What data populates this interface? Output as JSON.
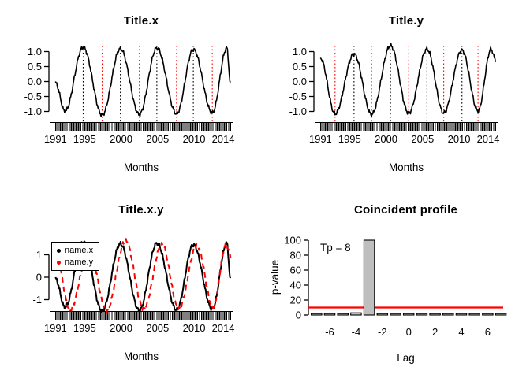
{
  "figure": {
    "background": "#ffffff"
  },
  "colors": {
    "black": "#000000",
    "red": "#ff0000",
    "bar_gray": "#bebebe"
  },
  "series_keypoints": {
    "x": [
      [
        1991,
        -0.05
      ],
      [
        1992.3,
        -1
      ],
      [
        1994.8,
        1.15
      ],
      [
        1997.4,
        -1.12
      ],
      [
        1999.9,
        1.1
      ],
      [
        2002.5,
        -1.1
      ],
      [
        2004.9,
        1.12
      ],
      [
        2007.6,
        -1.08
      ],
      [
        2009.9,
        1.07
      ],
      [
        2012.5,
        -1.05
      ],
      [
        2014.5,
        1.12
      ],
      [
        2015,
        -0.1
      ]
    ],
    "y": [
      [
        1991,
        0.78
      ],
      [
        1993,
        -1.08
      ],
      [
        1995.6,
        0.92
      ],
      [
        1998,
        -1.1
      ],
      [
        2000.6,
        1.2
      ],
      [
        2003.1,
        -1.05
      ],
      [
        2005.6,
        1.08
      ],
      [
        2007.9,
        -1.05
      ],
      [
        2010.4,
        1.05
      ],
      [
        2012.6,
        -0.98
      ],
      [
        2014.4,
        1.08
      ],
      [
        2015,
        0.72
      ]
    ]
  },
  "chart_data": [
    {
      "id": "title_x",
      "type": "line",
      "title": "Title.x",
      "xlabel": "Months",
      "x_range": [
        1991,
        2015
      ],
      "x_tick_years": [
        1991,
        1995,
        2000,
        2005,
        2010,
        2014
      ],
      "x_tick_labels": [
        "1991",
        "1995",
        "2000",
        "2005",
        "2010",
        "2014"
      ],
      "y_tick_values": [
        1,
        0.5,
        0,
        -0.5,
        -1
      ],
      "y_tick_labels": [
        "1.0",
        "0.5",
        "0.0",
        "-0.5",
        "-1.0"
      ],
      "ylim": [
        -1.3,
        1.3
      ],
      "rug": "monthly tick marks 1991-2015",
      "series": [
        {
          "ref": "x",
          "name": "name.x",
          "color": "#000000",
          "line": "solid",
          "scale": 1,
          "width": 1.6
        }
      ],
      "peak_lines": {
        "color": "#000000",
        "style": "dotted",
        "years": [
          1994.8,
          1999.9,
          2004.9,
          2009.9
        ]
      },
      "trough_lines": {
        "color": "#ff0000",
        "style": "dotted",
        "years": [
          1997.4,
          2002.5,
          2007.6,
          2012.5
        ]
      }
    },
    {
      "id": "title_y",
      "type": "line",
      "title": "Title.y",
      "xlabel": "Months",
      "x_range": [
        1991,
        2015
      ],
      "x_tick_years": [
        1991,
        1995,
        2000,
        2005,
        2010,
        2014
      ],
      "x_tick_labels": [
        "1991",
        "1995",
        "2000",
        "2005",
        "2010",
        "2014"
      ],
      "y_tick_values": [
        1,
        0.5,
        0,
        -0.5,
        -1
      ],
      "y_tick_labels": [
        "1.0",
        "0.5",
        "0.0",
        "-0.5",
        "-1.0"
      ],
      "ylim": [
        -1.3,
        1.3
      ],
      "rug": "monthly tick marks 1991-2015",
      "series": [
        {
          "ref": "y",
          "name": "name.y",
          "color": "#000000",
          "line": "solid",
          "scale": 1,
          "width": 1.6
        }
      ],
      "peak_lines": {
        "color": "#000000",
        "style": "dotted",
        "years": [
          1995.6,
          2000.6,
          2005.6,
          2010.4
        ]
      },
      "trough_lines": {
        "color": "#ff0000",
        "style": "dotted",
        "years": [
          1993,
          1998,
          2003.1,
          2007.9,
          2012.6
        ]
      }
    },
    {
      "id": "title_x_y",
      "type": "line",
      "title": "Title.x.y",
      "xlabel": "Months",
      "x_range": [
        1991,
        2015
      ],
      "x_tick_years": [
        1991,
        1995,
        2000,
        2005,
        2010,
        2014
      ],
      "x_tick_labels": [
        "1991",
        "1995",
        "2000",
        "2005",
        "2010",
        "2014"
      ],
      "y_tick_values": [
        1,
        0,
        -1
      ],
      "y_tick_labels": [
        "1",
        "0",
        "-1"
      ],
      "ylim": [
        -1.8,
        1.8
      ],
      "rug": "monthly tick marks 1991-2015",
      "series": [
        {
          "ref": "x",
          "name": "name.x",
          "color": "#000000",
          "line": "solid",
          "scale": 1.35,
          "width": 2
        },
        {
          "ref": "y",
          "name": "name.y",
          "color": "#ff0000",
          "line": "dashed",
          "scale": 1.35,
          "width": 2
        }
      ],
      "legend": {
        "position": "topleft",
        "items": [
          {
            "label": "name.x",
            "color": "#000000"
          },
          {
            "label": "name.y",
            "color": "#ff0000"
          }
        ]
      }
    },
    {
      "id": "coincident_profile",
      "type": "bar",
      "title": "Coincident profile",
      "xlabel": "Lag",
      "ylabel": "p-value",
      "lags": [
        -7,
        -6,
        -5,
        -4,
        -3,
        -2,
        -1,
        0,
        1,
        2,
        3,
        4,
        5,
        6,
        7
      ],
      "p_values": [
        1,
        1,
        1,
        3,
        100,
        1,
        1,
        1,
        1,
        1,
        1,
        1,
        1,
        1,
        1
      ],
      "x_tick_values": [
        -6,
        -4,
        -2,
        0,
        2,
        4,
        6
      ],
      "x_tick_labels": [
        "-6",
        "-4",
        "-2",
        "0",
        "2",
        "4",
        "6"
      ],
      "y_tick_values": [
        0,
        20,
        40,
        60,
        80,
        100
      ],
      "y_tick_labels": [
        "0",
        "20",
        "40",
        "60",
        "80",
        "100"
      ],
      "ylim": [
        0,
        100
      ],
      "bar_fill": "#bebebe",
      "bar_edge": "#000000",
      "threshold_line": {
        "value": 10,
        "color": "#ff0000"
      },
      "annotation": {
        "text": "Tp = 8",
        "tp": 8
      }
    }
  ]
}
